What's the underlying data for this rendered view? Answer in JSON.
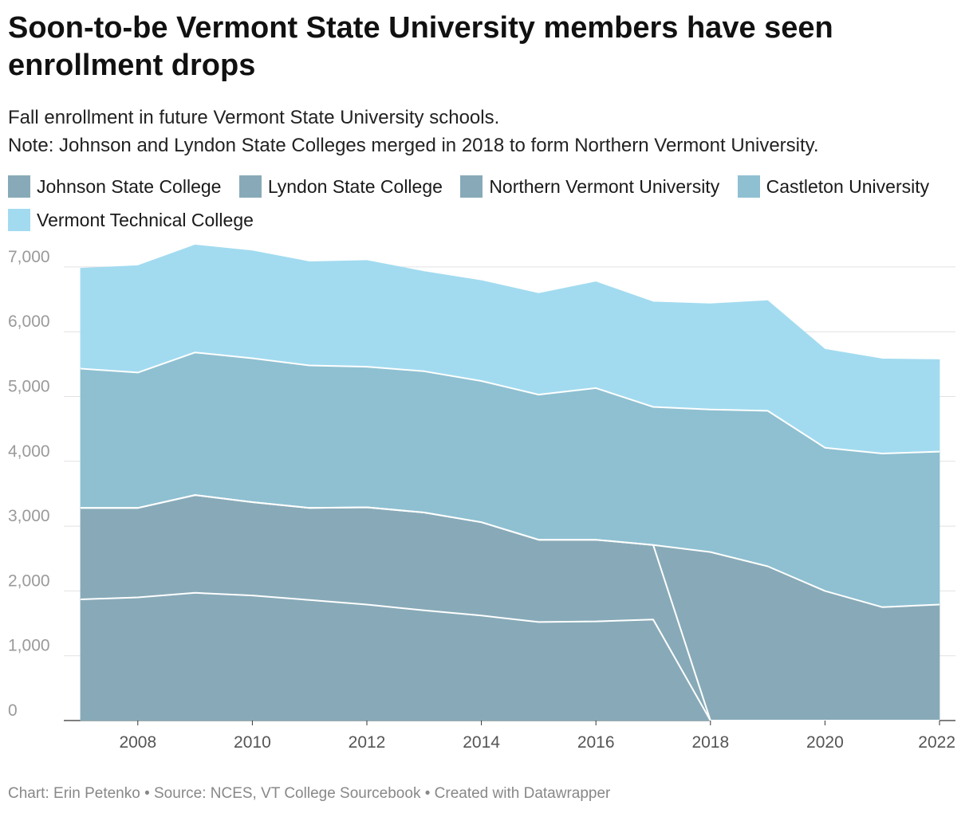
{
  "title": "Soon-to-be Vermont State University members have seen enrollment drops",
  "subtitle": {
    "line1": "Fall enrollment in future Vermont State University schools.",
    "line2": "Note: Johnson and Lyndon State Colleges merged in 2018 to form Northern Vermont University."
  },
  "footer": "Chart: Erin Petenko • Source: NCES, VT College Sourcebook • Created with Datawrapper",
  "chart_data": {
    "type": "area",
    "stacked": true,
    "x": [
      2007,
      2008,
      2009,
      2010,
      2011,
      2012,
      2013,
      2014,
      2015,
      2016,
      2017,
      2018,
      2019,
      2020,
      2021,
      2022
    ],
    "ylim": [
      0,
      7300
    ],
    "yticks": [
      0,
      1000,
      2000,
      3000,
      4000,
      5000,
      6000,
      7000
    ],
    "ytick_labels": [
      "0",
      "1,000",
      "2,000",
      "3,000",
      "4,000",
      "5,000",
      "6,000",
      "7,000"
    ],
    "xticks": [
      2008,
      2010,
      2012,
      2014,
      2016,
      2018,
      2020,
      2022
    ],
    "grid": true,
    "legend_position": "top",
    "series": [
      {
        "name": "Johnson State College",
        "color": "#88aab8",
        "values": [
          1870,
          1900,
          1970,
          1930,
          1860,
          1790,
          1700,
          1620,
          1520,
          1530,
          1560,
          0,
          0,
          0,
          0,
          0
        ]
      },
      {
        "name": "Lyndon State College",
        "color": "#88aab8",
        "values": [
          1410,
          1380,
          1510,
          1440,
          1420,
          1500,
          1510,
          1440,
          1270,
          1260,
          1150,
          0,
          0,
          0,
          0,
          0
        ]
      },
      {
        "name": "Northern Vermont University",
        "color": "#88aab8",
        "values": [
          0,
          0,
          0,
          0,
          0,
          0,
          0,
          0,
          0,
          0,
          0,
          2600,
          2380,
          2000,
          1750,
          1790
        ]
      },
      {
        "name": "Castleton University",
        "color": "#8ec0d1",
        "values": [
          2150,
          2090,
          2200,
          2220,
          2200,
          2170,
          2180,
          2180,
          2240,
          2340,
          2130,
          2200,
          2400,
          2210,
          2370,
          2360
        ]
      },
      {
        "name": "Vermont Technical College",
        "color": "#a2dbf0",
        "values": [
          1550,
          1650,
          1660,
          1660,
          1600,
          1640,
          1540,
          1550,
          1560,
          1640,
          1620,
          1630,
          1700,
          1520,
          1460,
          1420
        ]
      }
    ]
  }
}
